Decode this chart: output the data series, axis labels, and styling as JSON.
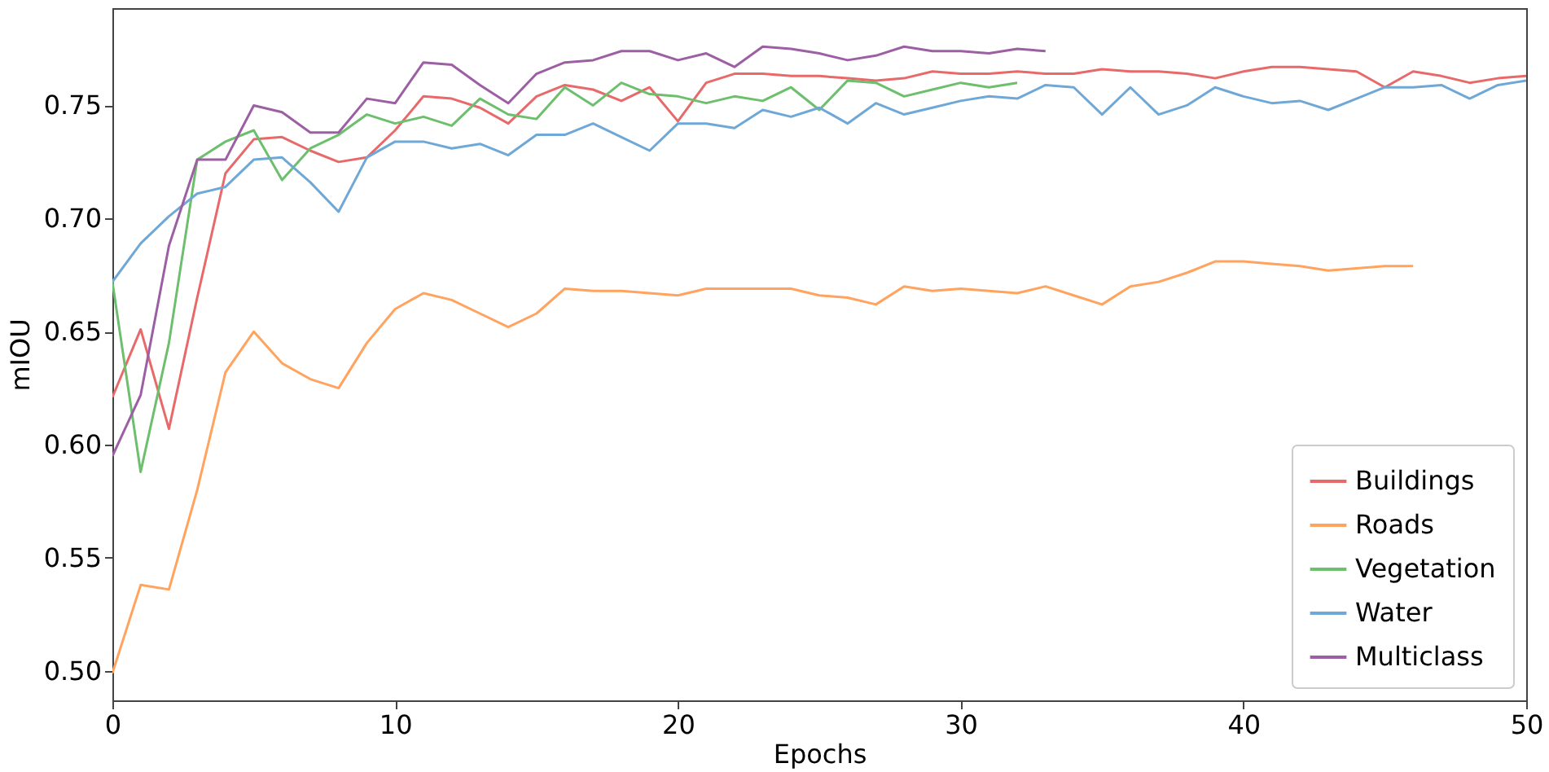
{
  "chart_data": {
    "type": "line",
    "xlabel": "Epochs",
    "ylabel": "mIOU",
    "series": [
      {
        "name": "Buildings",
        "color": "#e8696a",
        "x": [
          0,
          1,
          2,
          3,
          4,
          5,
          6,
          7,
          8,
          9,
          10,
          11,
          12,
          13,
          14,
          15,
          16,
          17,
          18,
          19,
          20,
          21,
          22,
          23,
          24,
          25,
          26,
          27,
          28,
          29,
          30,
          31,
          32,
          33,
          34,
          35,
          36,
          37,
          38,
          39,
          40,
          41,
          42,
          43,
          44,
          45,
          46,
          47,
          48,
          49,
          50
        ],
        "values": [
          0.621,
          0.651,
          0.607,
          0.665,
          0.72,
          0.735,
          0.736,
          0.73,
          0.725,
          0.727,
          0.739,
          0.754,
          0.753,
          0.749,
          0.742,
          0.754,
          0.759,
          0.757,
          0.752,
          0.758,
          0.743,
          0.76,
          0.764,
          0.764,
          0.763,
          0.763,
          0.762,
          0.761,
          0.762,
          0.765,
          0.764,
          0.764,
          0.765,
          0.764,
          0.764,
          0.766,
          0.765,
          0.765,
          0.764,
          0.762,
          0.765,
          0.767,
          0.767,
          0.766,
          0.765,
          0.758,
          0.765,
          0.763,
          0.76,
          0.762,
          0.763
        ]
      },
      {
        "name": "Roads",
        "color": "#ffa35f",
        "x": [
          0,
          1,
          2,
          3,
          4,
          5,
          6,
          7,
          8,
          9,
          10,
          11,
          12,
          13,
          14,
          15,
          16,
          17,
          18,
          19,
          20,
          21,
          22,
          23,
          24,
          25,
          26,
          27,
          28,
          29,
          30,
          31,
          32,
          33,
          34,
          35,
          36,
          37,
          38,
          39,
          40,
          41,
          42,
          43,
          44,
          45,
          46
        ],
        "values": [
          0.499,
          0.538,
          0.536,
          0.58,
          0.632,
          0.65,
          0.636,
          0.629,
          0.625,
          0.645,
          0.66,
          0.667,
          0.664,
          0.658,
          0.652,
          0.658,
          0.669,
          0.668,
          0.668,
          0.667,
          0.666,
          0.669,
          0.669,
          0.669,
          0.669,
          0.666,
          0.665,
          0.662,
          0.67,
          0.668,
          0.669,
          0.668,
          0.667,
          0.67,
          0.666,
          0.662,
          0.67,
          0.672,
          0.676,
          0.681,
          0.681,
          0.68,
          0.679,
          0.677,
          0.678,
          0.679,
          0.679
        ]
      },
      {
        "name": "Vegetation",
        "color": "#6dbf6d",
        "x": [
          0,
          1,
          2,
          3,
          4,
          5,
          6,
          7,
          8,
          9,
          10,
          11,
          12,
          13,
          14,
          15,
          16,
          17,
          18,
          19,
          20,
          21,
          22,
          23,
          24,
          25,
          26,
          27,
          28,
          29,
          30,
          31,
          32
        ],
        "values": [
          0.672,
          0.588,
          0.645,
          0.726,
          0.734,
          0.739,
          0.717,
          0.731,
          0.737,
          0.746,
          0.742,
          0.745,
          0.741,
          0.753,
          0.746,
          0.744,
          0.758,
          0.75,
          0.76,
          0.755,
          0.754,
          0.751,
          0.754,
          0.752,
          0.758,
          0.748,
          0.761,
          0.76,
          0.754,
          0.757,
          0.76,
          0.758,
          0.76
        ]
      },
      {
        "name": "Water",
        "color": "#6fa8d6",
        "x": [
          0,
          1,
          2,
          3,
          4,
          5,
          6,
          7,
          8,
          9,
          10,
          11,
          12,
          13,
          14,
          15,
          16,
          17,
          18,
          19,
          20,
          21,
          22,
          23,
          24,
          25,
          26,
          27,
          28,
          29,
          30,
          31,
          32,
          33,
          34,
          35,
          36,
          37,
          38,
          39,
          40,
          41,
          42,
          43,
          44,
          45,
          46,
          47,
          48,
          49,
          50
        ],
        "values": [
          0.672,
          0.689,
          0.701,
          0.711,
          0.714,
          0.726,
          0.727,
          0.716,
          0.703,
          0.727,
          0.734,
          0.734,
          0.731,
          0.733,
          0.728,
          0.737,
          0.737,
          0.742,
          0.736,
          0.73,
          0.742,
          0.742,
          0.74,
          0.748,
          0.745,
          0.749,
          0.742,
          0.751,
          0.746,
          0.749,
          0.752,
          0.754,
          0.753,
          0.759,
          0.758,
          0.746,
          0.758,
          0.746,
          0.75,
          0.758,
          0.754,
          0.751,
          0.752,
          0.748,
          0.753,
          0.758,
          0.758,
          0.759,
          0.753,
          0.759,
          0.761
        ]
      },
      {
        "name": "Multiclass",
        "color": "#9c5fa4",
        "x": [
          0,
          1,
          2,
          3,
          4,
          5,
          6,
          7,
          8,
          9,
          10,
          11,
          12,
          13,
          14,
          15,
          16,
          17,
          18,
          19,
          20,
          21,
          22,
          23,
          24,
          25,
          26,
          27,
          28,
          29,
          30,
          31,
          32,
          33
        ],
        "values": [
          0.595,
          0.622,
          0.688,
          0.726,
          0.726,
          0.75,
          0.747,
          0.738,
          0.738,
          0.753,
          0.751,
          0.769,
          0.768,
          0.759,
          0.751,
          0.764,
          0.769,
          0.77,
          0.774,
          0.774,
          0.77,
          0.773,
          0.767,
          0.776,
          0.775,
          0.773,
          0.77,
          0.772,
          0.776,
          0.774,
          0.774,
          0.773,
          0.775,
          0.774
        ]
      }
    ],
    "xlim": [
      0,
      50
    ],
    "xticks": [
      0,
      10,
      20,
      30,
      40,
      50
    ],
    "ylim": [
      0.487,
      0.793
    ],
    "yticks": [
      {
        "value": 0.5,
        "label": "0.50"
      },
      {
        "value": 0.55,
        "label": "0.55"
      },
      {
        "value": 0.6,
        "label": "0.60"
      },
      {
        "value": 0.65,
        "label": "0.65"
      },
      {
        "value": 0.7,
        "label": "0.70"
      },
      {
        "value": 0.75,
        "label": "0.75"
      }
    ],
    "grid": false,
    "legend": "bottom right"
  }
}
